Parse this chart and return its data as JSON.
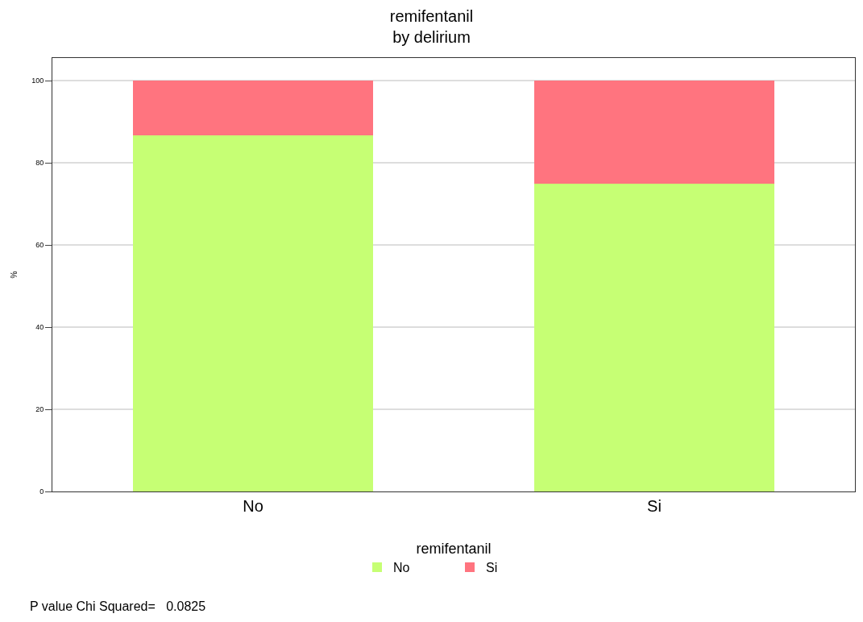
{
  "chart_data": {
    "type": "bar",
    "title": "remifentanil",
    "subtitle": "by delirium",
    "ylabel": "%",
    "legend_title": "remifentanil",
    "categories": [
      "No",
      "Si"
    ],
    "stacked": true,
    "series": [
      {
        "name": "No",
        "color": "#c6ff74",
        "values": [
          86.7,
          75.0
        ]
      },
      {
        "name": "Si",
        "color": "#ff747f",
        "values": [
          13.3,
          25.0
        ]
      }
    ],
    "ylim": [
      0,
      105.5
    ],
    "yticks": [
      0,
      20,
      40,
      60,
      80,
      100
    ],
    "grid": "y",
    "legend": "bottom",
    "annotations": [
      "P value Chi Squared=   0.0825"
    ]
  }
}
